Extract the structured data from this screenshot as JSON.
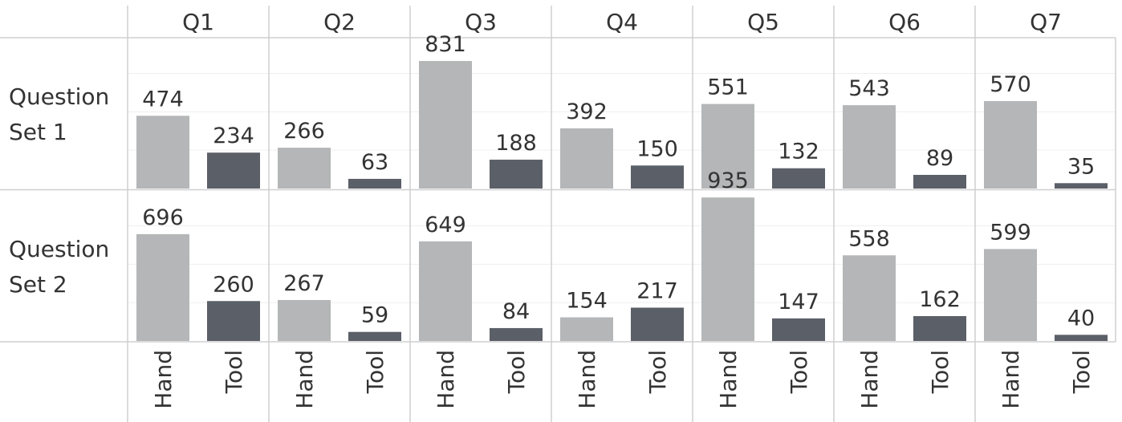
{
  "chart_data": {
    "type": "bar",
    "columns": [
      "Q1",
      "Q2",
      "Q3",
      "Q4",
      "Q5",
      "Q6",
      "Q7"
    ],
    "rows": [
      "Question Set 1",
      "Question Set 2"
    ],
    "row_label_lines": [
      [
        "Question",
        "Set 1"
      ],
      [
        "Question",
        "Set 2"
      ]
    ],
    "categories": [
      "Hand",
      "Tool"
    ],
    "series": [
      {
        "name": "Hand",
        "color": "#b4b6b7",
        "set1": [
          474,
          266,
          831,
          392,
          551,
          543,
          570
        ],
        "set2": [
          696,
          267,
          649,
          154,
          935,
          558,
          599
        ]
      },
      {
        "name": "Tool",
        "color": "#5b5f68",
        "set1": [
          234,
          63,
          188,
          150,
          132,
          89,
          35
        ],
        "set2": [
          260,
          59,
          84,
          217,
          147,
          162,
          40
        ]
      }
    ],
    "ylim": [
      0,
      1150
    ],
    "grid": true,
    "data_labels": true
  }
}
